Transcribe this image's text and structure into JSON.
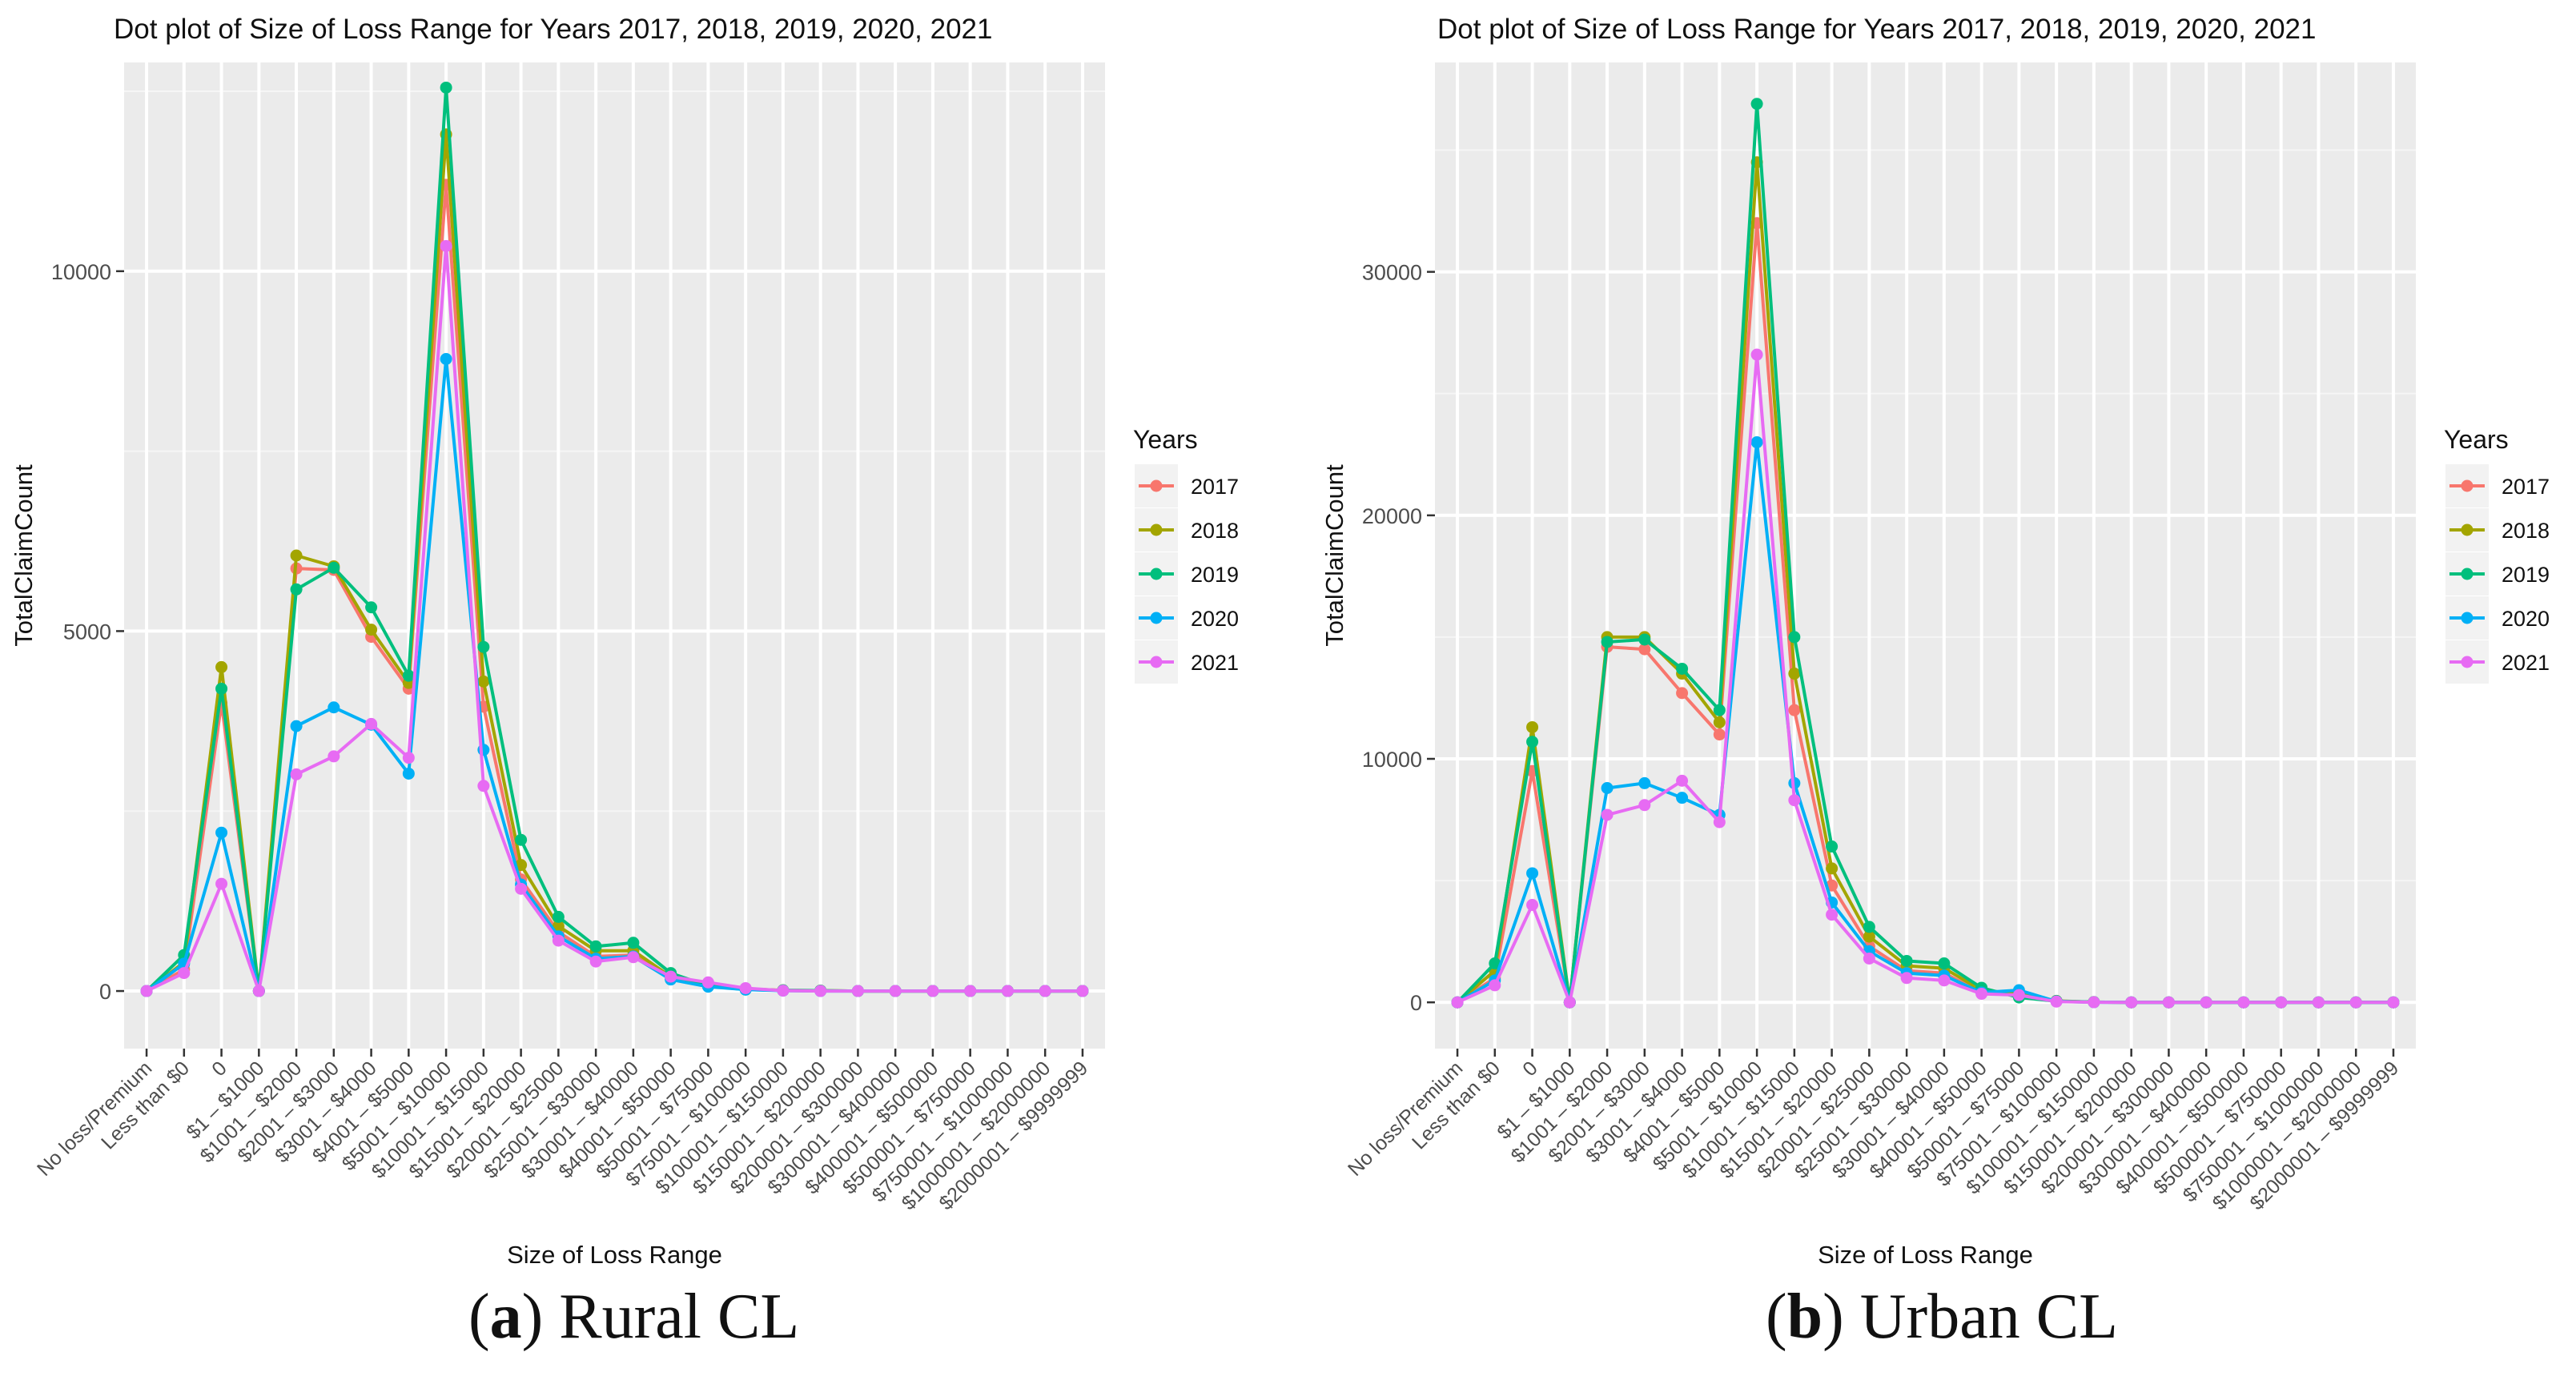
{
  "chart_data": [
    {
      "type": "line",
      "id": "rural",
      "title": "Dot plot of Size of Loss Range for Years 2017, 2018, 2019, 2020, 2021",
      "xlabel": "Size of Loss Range",
      "ylabel": "TotalClaimCount",
      "ylim": [
        -800,
        12900
      ],
      "yticks": [
        0,
        5000,
        10000
      ],
      "ytick_labels": [
        "0",
        "5000",
        "10000"
      ],
      "grid": true,
      "legend_title": "Years",
      "categories": [
        "No loss/Premium",
        "Less than $0",
        "0",
        "$1 – $1000",
        "$1001 – $2000",
        "$2001 – $3000",
        "$3001 – $4000",
        "$4001 – $5000",
        "$5001 – $10000",
        "$10001 – $15000",
        "$15001 – $20000",
        "$20001 – $25000",
        "$25001 – $30000",
        "$30001 – $40000",
        "$40001 – $50000",
        "$50001 – $75000",
        "$75001 – $100000",
        "$100001 – $150000",
        "$150001 – $200000",
        "$200001 – $300000",
        "$300001 – $400000",
        "$400001 – $500000",
        "$500001 – $750000",
        "$750001 – $1000000",
        "$1000001 – $2000000",
        "$2000001 – $9999999"
      ],
      "series": [
        {
          "name": "2017",
          "color": "#F8766D",
          "values": [
            0,
            300,
            4000,
            0,
            5870,
            5850,
            4920,
            4200,
            11200,
            3950,
            1550,
            820,
            480,
            500,
            180,
            80,
            30,
            10,
            5,
            0,
            0,
            0,
            0,
            0,
            0,
            0
          ]
        },
        {
          "name": "2018",
          "color": "#A3A500",
          "values": [
            0,
            400,
            4500,
            0,
            6050,
            5900,
            5020,
            4280,
            11900,
            4300,
            1750,
            900,
            560,
            560,
            200,
            90,
            30,
            10,
            5,
            0,
            0,
            0,
            0,
            0,
            0,
            0
          ]
        },
        {
          "name": "2019",
          "color": "#00BF7D",
          "values": [
            0,
            500,
            4200,
            0,
            5580,
            5880,
            5330,
            4380,
            12550,
            4780,
            2100,
            1030,
            620,
            670,
            250,
            70,
            20,
            10,
            5,
            0,
            0,
            0,
            0,
            0,
            0,
            0
          ]
        },
        {
          "name": "2020",
          "color": "#00B0F6",
          "values": [
            0,
            380,
            2200,
            0,
            3680,
            3940,
            3700,
            3020,
            8780,
            3350,
            1480,
            760,
            450,
            480,
            160,
            60,
            20,
            5,
            0,
            0,
            0,
            0,
            0,
            0,
            0,
            0
          ]
        },
        {
          "name": "2021",
          "color": "#E76BF3",
          "values": [
            0,
            250,
            1490,
            0,
            3010,
            3260,
            3710,
            3240,
            10350,
            2850,
            1420,
            700,
            410,
            470,
            200,
            120,
            40,
            5,
            0,
            0,
            0,
            0,
            0,
            0,
            0,
            0
          ]
        }
      ]
    },
    {
      "type": "line",
      "id": "urban",
      "title": "Dot plot of Size of Loss Range for Years 2017, 2018, 2019, 2020, 2021",
      "xlabel": "Size of Loss Range",
      "ylabel": "TotalClaimCount",
      "ylim": [
        -1900,
        38600
      ],
      "yticks": [
        0,
        10000,
        20000,
        30000
      ],
      "ytick_labels": [
        "0",
        "10000",
        "20000",
        "30000"
      ],
      "grid": true,
      "legend_title": "Years",
      "categories": [
        "No loss/Premium",
        "Less than $0",
        "0",
        "$1 – $1000",
        "$1001 – $2000",
        "$2001 – $3000",
        "$3001 – $4000",
        "$4001 – $5000",
        "$5001 – $10000",
        "$10001 – $15000",
        "$15001 – $20000",
        "$20001 – $25000",
        "$25001 – $30000",
        "$30001 – $40000",
        "$40001 – $50000",
        "$50001 – $75000",
        "$75001 – $100000",
        "$100001 – $150000",
        "$150001 – $200000",
        "$200001 – $300000",
        "$300001 – $400000",
        "$400001 – $500000",
        "$500001 – $750000",
        "$750001 – $1000000",
        "$1000001 – $2000000",
        "$2000001 – $9999999"
      ],
      "series": [
        {
          "name": "2017",
          "color": "#F8766D",
          "values": [
            0,
            1000,
            9500,
            0,
            14600,
            14500,
            12700,
            11000,
            32000,
            12000,
            4800,
            2300,
            1300,
            1200,
            400,
            300,
            50,
            10,
            0,
            0,
            0,
            0,
            0,
            0,
            0,
            0
          ]
        },
        {
          "name": "2018",
          "color": "#A3A500",
          "values": [
            0,
            1300,
            11300,
            0,
            15000,
            15000,
            13500,
            11500,
            34500,
            13500,
            5500,
            2700,
            1500,
            1400,
            500,
            350,
            60,
            10,
            0,
            0,
            0,
            0,
            0,
            0,
            0,
            0
          ]
        },
        {
          "name": "2019",
          "color": "#00BF7D",
          "values": [
            0,
            1600,
            10700,
            0,
            14800,
            14900,
            13700,
            12000,
            36900,
            15000,
            6400,
            3100,
            1700,
            1600,
            600,
            200,
            50,
            10,
            0,
            0,
            0,
            0,
            0,
            0,
            0,
            0
          ]
        },
        {
          "name": "2020",
          "color": "#00B0F6",
          "values": [
            0,
            900,
            5300,
            0,
            8800,
            9000,
            8400,
            7700,
            23000,
            9000,
            4100,
            2100,
            1200,
            1100,
            400,
            500,
            40,
            5,
            0,
            0,
            0,
            0,
            0,
            0,
            0,
            0
          ]
        },
        {
          "name": "2021",
          "color": "#E76BF3",
          "values": [
            0,
            700,
            4000,
            0,
            7700,
            8100,
            9100,
            7400,
            26600,
            8300,
            3600,
            1800,
            1000,
            900,
            350,
            300,
            30,
            5,
            0,
            0,
            0,
            0,
            0,
            0,
            0,
            0
          ]
        }
      ]
    }
  ],
  "captions": {
    "a": {
      "letter": "a",
      "text": "Rural CL"
    },
    "b": {
      "letter": "b",
      "text": "Urban CL"
    }
  }
}
